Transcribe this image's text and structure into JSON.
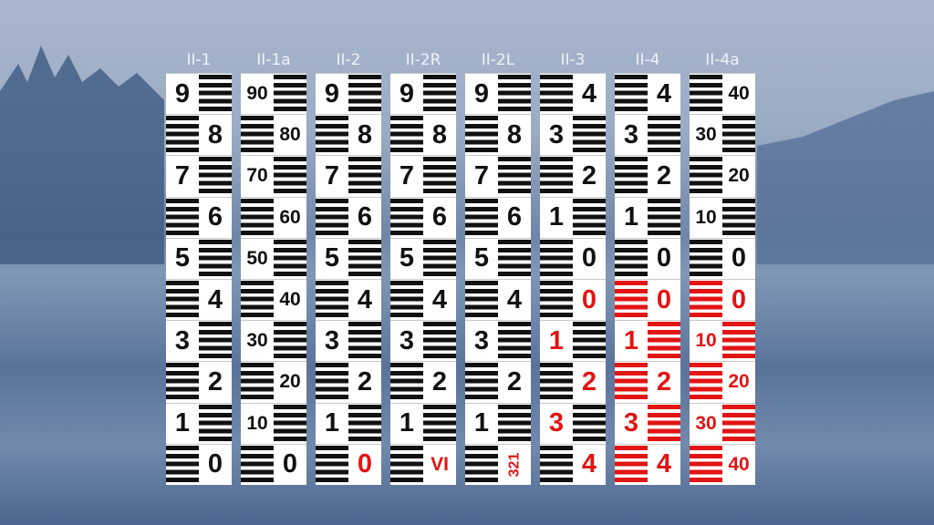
{
  "rods": [
    {
      "label": "II-1",
      "cells": [
        "9",
        "8",
        "7",
        "6",
        "5",
        "4",
        "3",
        "2",
        "1",
        "0"
      ],
      "red_text": [],
      "red_bars": [],
      "pattern": "alternate"
    },
    {
      "label": "II-1a",
      "cells": [
        "90",
        "80",
        "70",
        "60",
        "50",
        "40",
        "30",
        "20",
        "10",
        "0"
      ],
      "red_text": [],
      "red_bars": [],
      "pattern": "alternate"
    },
    {
      "label": "II-2",
      "cells": [
        "9",
        "8",
        "7",
        "6",
        "5",
        "4",
        "3",
        "2",
        "1",
        "0"
      ],
      "red_text": [
        9
      ],
      "red_bars": [],
      "pattern": "alternate"
    },
    {
      "label": "II-2R",
      "cells": [
        "9",
        "8",
        "7",
        "6",
        "5",
        "4",
        "3",
        "2",
        "1",
        "VI"
      ],
      "red_text": [
        9
      ],
      "red_bars": [],
      "pattern": "alternate"
    },
    {
      "label": "II-2L",
      "cells": [
        "9",
        "8",
        "7",
        "6",
        "5",
        "4",
        "3",
        "2",
        "1",
        "321"
      ],
      "red_text": [
        9
      ],
      "red_bars": [],
      "rotated": [
        9
      ],
      "pattern": "alternate"
    },
    {
      "label": "II-3",
      "cells": [
        "4",
        "3",
        "2",
        "1",
        "0",
        "0",
        "1",
        "2",
        "3",
        "4"
      ],
      "red_text": [
        5,
        6,
        7,
        8,
        9
      ],
      "red_bars": [],
      "pattern": "mirrored"
    },
    {
      "label": "II-4",
      "cells": [
        "4",
        "3",
        "2",
        "1",
        "0",
        "0",
        "1",
        "2",
        "3",
        "4"
      ],
      "red_text": [
        5,
        6,
        7,
        8,
        9
      ],
      "red_bars": [
        5,
        6,
        7,
        8,
        9
      ],
      "pattern": "mirrored"
    },
    {
      "label": "II-4a",
      "cells": [
        "40",
        "30",
        "20",
        "10",
        "0",
        "0",
        "10",
        "20",
        "30",
        "40"
      ],
      "red_text": [
        5,
        6,
        7,
        8,
        9
      ],
      "red_bars": [
        5,
        6,
        7,
        8,
        9
      ],
      "pattern": "mirrored"
    }
  ],
  "colors": {
    "red": "#e21414",
    "black": "#111111"
  }
}
